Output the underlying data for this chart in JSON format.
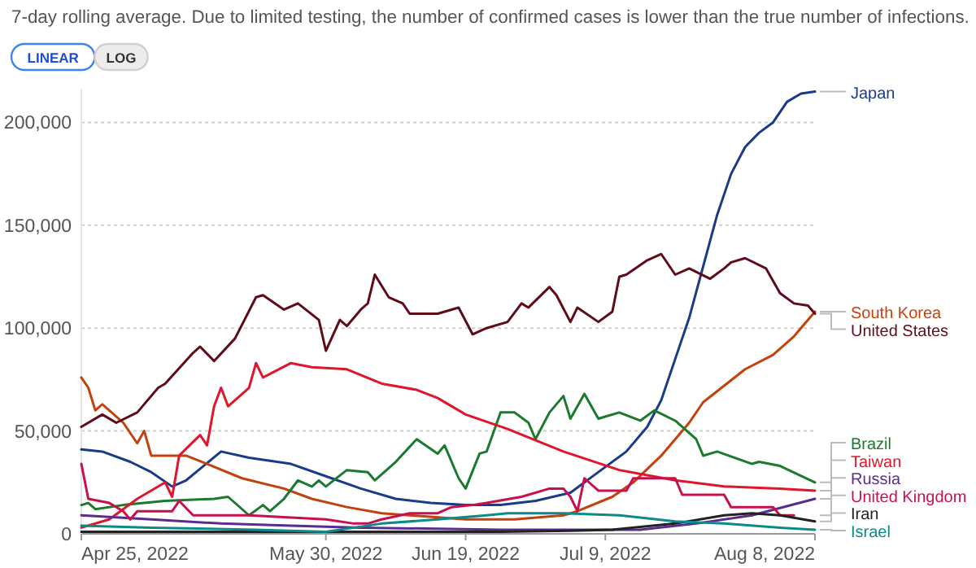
{
  "chart_data": {
    "type": "line",
    "subtitle": "7-day rolling average. Due to limited testing, the number of confirmed cases is lower than the true number of infections.",
    "annotations": [
      "LINEAR",
      "LOG"
    ],
    "xlim": [
      "2022-04-25",
      "2022-08-08"
    ],
    "xticks": [
      {
        "value": "2022-04-25",
        "label": "Apr 25, 2022"
      },
      {
        "value": "2022-05-30",
        "label": "May 30, 2022"
      },
      {
        "value": "2022-06-19",
        "label": "Jun 19, 2022"
      },
      {
        "value": "2022-07-09",
        "label": "Jul 9, 2022"
      },
      {
        "value": "2022-08-08",
        "label": "Aug 8, 2022"
      }
    ],
    "ylim": [
      0,
      216000
    ],
    "yticks": [
      0,
      {
        "value": 50000,
        "label": "50,000"
      },
      {
        "value": 100000,
        "label": "100,000"
      },
      {
        "value": 150000,
        "label": "150,000"
      },
      {
        "value": 200000,
        "label": "200,000"
      }
    ],
    "grid": "y",
    "legend": "right",
    "series": [
      {
        "name": "Japan",
        "color": "#1a3a8a",
        "x": [
          "2022-04-25",
          "2022-04-28",
          "2022-05-02",
          "2022-05-05",
          "2022-05-08",
          "2022-05-10",
          "2022-05-15",
          "2022-05-19",
          "2022-05-25",
          "2022-05-30",
          "2022-06-04",
          "2022-06-09",
          "2022-06-14",
          "2022-06-19",
          "2022-06-24",
          "2022-06-29",
          "2022-07-04",
          "2022-07-08",
          "2022-07-12",
          "2022-07-15",
          "2022-07-17",
          "2022-07-19",
          "2022-07-21",
          "2022-07-23",
          "2022-07-25",
          "2022-07-27",
          "2022-07-29",
          "2022-07-31",
          "2022-08-02",
          "2022-08-04",
          "2022-08-06",
          "2022-08-08"
        ],
        "values": [
          41000,
          40000,
          35000,
          30000,
          23000,
          26000,
          40000,
          37000,
          34000,
          28000,
          22000,
          17000,
          15000,
          14000,
          14000,
          16000,
          20000,
          30000,
          40000,
          52000,
          65000,
          85000,
          105000,
          130000,
          155000,
          175000,
          188000,
          195000,
          200000,
          210000,
          214000,
          215000
        ]
      },
      {
        "name": "South Korea",
        "color": "#c2410c",
        "x": [
          "2022-04-25",
          "2022-04-26",
          "2022-04-27",
          "2022-04-28",
          "2022-05-01",
          "2022-05-03",
          "2022-05-04",
          "2022-05-05",
          "2022-05-10",
          "2022-05-13",
          "2022-05-18",
          "2022-05-24",
          "2022-05-28",
          "2022-06-02",
          "2022-06-07",
          "2022-06-11",
          "2022-06-19",
          "2022-06-26",
          "2022-07-03",
          "2022-07-05",
          "2022-07-10",
          "2022-07-13",
          "2022-07-17",
          "2022-07-21",
          "2022-07-23",
          "2022-07-29",
          "2022-08-02",
          "2022-08-05",
          "2022-08-08"
        ],
        "values": [
          76000,
          71000,
          60000,
          63000,
          54000,
          44000,
          50000,
          38000,
          38000,
          34000,
          27000,
          22000,
          17000,
          13000,
          10000,
          9000,
          7000,
          7000,
          9000,
          11000,
          18000,
          25000,
          38000,
          54000,
          64000,
          80000,
          87000,
          96000,
          108000
        ]
      },
      {
        "name": "United States",
        "color": "#5e0b1a",
        "x": [
          "2022-04-25",
          "2022-04-28",
          "2022-04-30",
          "2022-05-03",
          "2022-05-06",
          "2022-05-07",
          "2022-05-11",
          "2022-05-12",
          "2022-05-14",
          "2022-05-17",
          "2022-05-20",
          "2022-05-21",
          "2022-05-24",
          "2022-05-26",
          "2022-05-29",
          "2022-05-30",
          "2022-06-01",
          "2022-06-02",
          "2022-06-04",
          "2022-06-05",
          "2022-06-06",
          "2022-06-08",
          "2022-06-10",
          "2022-06-11",
          "2022-06-15",
          "2022-06-18",
          "2022-06-20",
          "2022-06-22",
          "2022-06-25",
          "2022-06-27",
          "2022-06-28",
          "2022-07-01",
          "2022-07-02",
          "2022-07-04",
          "2022-07-05",
          "2022-07-08",
          "2022-07-10",
          "2022-07-11",
          "2022-07-12",
          "2022-07-15",
          "2022-07-17",
          "2022-07-19",
          "2022-07-21",
          "2022-07-24",
          "2022-07-26",
          "2022-07-27",
          "2022-07-29",
          "2022-08-01",
          "2022-08-03",
          "2022-08-05",
          "2022-08-07",
          "2022-08-08"
        ],
        "values": [
          52000,
          58000,
          54000,
          59000,
          71000,
          73000,
          88000,
          91000,
          84000,
          95000,
          115000,
          116000,
          109000,
          112000,
          104000,
          89000,
          104000,
          101000,
          109000,
          112000,
          126000,
          115000,
          112000,
          107000,
          107000,
          110000,
          97000,
          100000,
          103000,
          112000,
          110000,
          120000,
          116000,
          103000,
          110000,
          103000,
          108000,
          125000,
          126000,
          133000,
          136000,
          126000,
          129000,
          124000,
          129000,
          132000,
          134000,
          129000,
          117000,
          112000,
          111000,
          107000
        ]
      },
      {
        "name": "Brazil",
        "color": "#1b7a2e",
        "x": [
          "2022-04-25",
          "2022-04-26",
          "2022-04-27",
          "2022-05-01",
          "2022-05-07",
          "2022-05-14",
          "2022-05-16",
          "2022-05-19",
          "2022-05-21",
          "2022-05-22",
          "2022-05-24",
          "2022-05-26",
          "2022-05-28",
          "2022-05-29",
          "2022-05-30",
          "2022-06-02",
          "2022-06-05",
          "2022-06-06",
          "2022-06-09",
          "2022-06-12",
          "2022-06-15",
          "2022-06-16",
          "2022-06-18",
          "2022-06-19",
          "2022-06-21",
          "2022-06-22",
          "2022-06-24",
          "2022-06-26",
          "2022-06-28",
          "2022-06-29",
          "2022-07-01",
          "2022-07-03",
          "2022-07-04",
          "2022-07-06",
          "2022-07-08",
          "2022-07-11",
          "2022-07-14",
          "2022-07-16",
          "2022-07-19",
          "2022-07-22",
          "2022-07-23",
          "2022-07-25",
          "2022-07-30",
          "2022-07-31",
          "2022-08-03",
          "2022-08-08"
        ],
        "values": [
          14000,
          15000,
          12000,
          14000,
          16000,
          17000,
          18000,
          9000,
          14000,
          11000,
          17000,
          26000,
          23000,
          26000,
          23000,
          31000,
          30000,
          26000,
          35000,
          46000,
          39000,
          43000,
          27000,
          22000,
          39000,
          40000,
          59000,
          59000,
          54000,
          46000,
          59000,
          67000,
          56000,
          68000,
          56000,
          59000,
          55000,
          60000,
          55000,
          46000,
          38000,
          40000,
          34000,
          35000,
          33000,
          25000
        ]
      },
      {
        "name": "Taiwan",
        "color": "#e0162b",
        "x": [
          "2022-04-25",
          "2022-04-29",
          "2022-05-03",
          "2022-05-07",
          "2022-05-08",
          "2022-05-09",
          "2022-05-12",
          "2022-05-13",
          "2022-05-14",
          "2022-05-15",
          "2022-05-16",
          "2022-05-19",
          "2022-05-20",
          "2022-05-21",
          "2022-05-25",
          "2022-05-28",
          "2022-06-02",
          "2022-06-07",
          "2022-06-12",
          "2022-06-15",
          "2022-06-19",
          "2022-06-25",
          "2022-07-03",
          "2022-07-11",
          "2022-07-19",
          "2022-07-26",
          "2022-08-03",
          "2022-08-08"
        ],
        "values": [
          3000,
          7000,
          17000,
          25000,
          18000,
          38000,
          48000,
          43000,
          62000,
          71000,
          62000,
          71000,
          83000,
          76000,
          83000,
          81000,
          80000,
          73000,
          70000,
          66000,
          58000,
          51000,
          40000,
          31000,
          26000,
          23000,
          22000,
          21000
        ]
      },
      {
        "name": "Russia",
        "color": "#5b2c8f",
        "x": [
          "2022-04-25",
          "2022-05-05",
          "2022-05-15",
          "2022-05-25",
          "2022-06-04",
          "2022-06-24",
          "2022-07-14",
          "2022-07-22",
          "2022-07-30",
          "2022-08-08"
        ],
        "values": [
          9000,
          7000,
          5000,
          4000,
          3000,
          2000,
          2000,
          5000,
          9000,
          17000
        ]
      },
      {
        "name": "United Kingdom",
        "color": "#c8104e",
        "x": [
          "2022-04-25",
          "2022-04-26",
          "2022-04-29",
          "2022-05-01",
          "2022-05-02",
          "2022-05-03",
          "2022-05-08",
          "2022-05-09",
          "2022-05-11",
          "2022-05-19",
          "2022-05-30",
          "2022-06-03",
          "2022-06-05",
          "2022-06-07",
          "2022-06-11",
          "2022-06-15",
          "2022-06-17",
          "2022-06-20",
          "2022-06-22",
          "2022-06-27",
          "2022-07-01",
          "2022-07-03",
          "2022-07-04",
          "2022-07-05",
          "2022-07-06",
          "2022-07-08",
          "2022-07-12",
          "2022-07-13",
          "2022-07-19",
          "2022-07-20",
          "2022-07-26",
          "2022-07-27",
          "2022-08-02",
          "2022-08-03",
          "2022-08-05"
        ],
        "values": [
          34000,
          17000,
          15000,
          11000,
          7000,
          11000,
          11000,
          16000,
          9000,
          9000,
          7000,
          5000,
          5000,
          7000,
          10000,
          10000,
          13000,
          14000,
          15000,
          18000,
          22000,
          22000,
          18000,
          11000,
          27000,
          21000,
          21000,
          27000,
          27000,
          19000,
          19000,
          13000,
          13000,
          9000,
          9000
        ]
      },
      {
        "name": "Iran",
        "color": "#222222",
        "x": [
          "2022-04-25",
          "2022-05-25",
          "2022-06-24",
          "2022-07-04",
          "2022-07-10",
          "2022-07-19",
          "2022-07-26",
          "2022-07-30",
          "2022-08-03",
          "2022-08-08"
        ],
        "values": [
          1000,
          1000,
          1000,
          1500,
          2000,
          5000,
          9000,
          10000,
          9000,
          6000
        ]
      },
      {
        "name": "Israel",
        "color": "#0b8a8a",
        "x": [
          "2022-04-25",
          "2022-05-05",
          "2022-05-20",
          "2022-05-30",
          "2022-06-07",
          "2022-06-15",
          "2022-06-22",
          "2022-06-25",
          "2022-07-03",
          "2022-07-11",
          "2022-07-19",
          "2022-07-26",
          "2022-08-03",
          "2022-08-08"
        ],
        "values": [
          4000,
          3000,
          2000,
          1000,
          5000,
          7000,
          9000,
          10000,
          10000,
          9000,
          6000,
          5000,
          3000,
          2000
        ]
      }
    ]
  }
}
